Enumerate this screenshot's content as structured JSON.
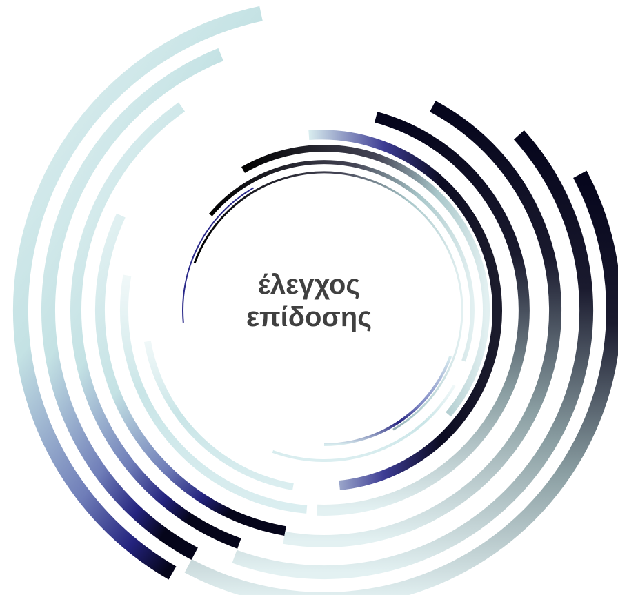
{
  "title": {
    "line1": "έλεγχος",
    "line2": "επίδοσης"
  },
  "palette": {
    "light": "#dceff0",
    "mid": "#b9dfe2",
    "navy": "#2b2a8a",
    "dark": "#0a0a1e",
    "black": "#000000",
    "text": "#404040"
  }
}
